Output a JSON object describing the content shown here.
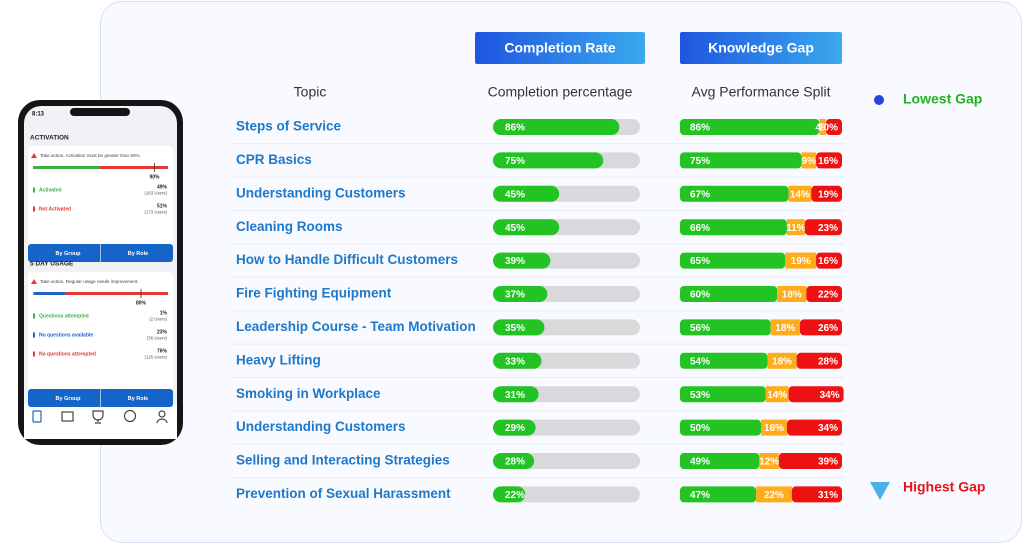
{
  "header": {
    "completion_button": "Completion Rate",
    "gap_button": "Knowledge Gap"
  },
  "table": {
    "columns": [
      "Topic",
      "Completion percentage",
      "Avg Performance Split"
    ],
    "rows": [
      {
        "topic": "Steps of Service",
        "completion": {
          "value": 86,
          "label": "86%"
        },
        "split": [
          {
            "value": 86,
            "label": "86%"
          },
          {
            "value": 4,
            "label": "4%"
          },
          {
            "value": 10,
            "label": "10%"
          }
        ]
      },
      {
        "topic": "CPR Basics",
        "completion": {
          "value": 75,
          "label": "75%"
        },
        "split": [
          {
            "value": 75,
            "label": "75%"
          },
          {
            "value": 9,
            "label": "9%"
          },
          {
            "value": 16,
            "label": "16%"
          }
        ]
      },
      {
        "topic": "Understanding Customers",
        "completion": {
          "value": 45,
          "label": "45%"
        },
        "split": [
          {
            "value": 67,
            "label": "67%"
          },
          {
            "value": 14,
            "label": "14%"
          },
          {
            "value": 19,
            "label": "19%"
          }
        ]
      },
      {
        "topic": "Cleaning Rooms",
        "completion": {
          "value": 45,
          "label": "45%"
        },
        "split": [
          {
            "value": 66,
            "label": "66%"
          },
          {
            "value": 11,
            "label": "11%"
          },
          {
            "value": 23,
            "label": "23%"
          }
        ]
      },
      {
        "topic": "How to Handle Difficult Customers",
        "completion": {
          "value": 39,
          "label": "39%"
        },
        "split": [
          {
            "value": 65,
            "label": "65%"
          },
          {
            "value": 19,
            "label": "19%"
          },
          {
            "value": 16,
            "label": "16%"
          }
        ]
      },
      {
        "topic": "Fire Fighting Equipment",
        "completion": {
          "value": 37,
          "label": "37%"
        },
        "split": [
          {
            "value": 60,
            "label": "60%"
          },
          {
            "value": 18,
            "label": "18%"
          },
          {
            "value": 22,
            "label": "22%"
          }
        ]
      },
      {
        "topic": "Leadership Course - Team Motivation",
        "completion": {
          "value": 35,
          "label": "35%"
        },
        "split": [
          {
            "value": 56,
            "label": "56%"
          },
          {
            "value": 18,
            "label": "18%"
          },
          {
            "value": 26,
            "label": "26%"
          }
        ]
      },
      {
        "topic": "Heavy Lifting",
        "completion": {
          "value": 33,
          "label": "33%"
        },
        "split": [
          {
            "value": 54,
            "label": "54%"
          },
          {
            "value": 18,
            "label": "18%"
          },
          {
            "value": 28,
            "label": "28%"
          }
        ]
      },
      {
        "topic": "Smoking in Workplace",
        "completion": {
          "value": 31,
          "label": "31%"
        },
        "split": [
          {
            "value": 53,
            "label": "53%"
          },
          {
            "value": 14,
            "label": "14%"
          },
          {
            "value": 34,
            "label": "34%"
          }
        ]
      },
      {
        "topic": "Understanding Customers",
        "completion": {
          "value": 29,
          "label": "29%"
        },
        "split": [
          {
            "value": 50,
            "label": "50%"
          },
          {
            "value": 16,
            "label": "16%"
          },
          {
            "value": 34,
            "label": "34%"
          }
        ]
      },
      {
        "topic": "Selling and Interacting Strategies",
        "completion": {
          "value": 28,
          "label": "28%"
        },
        "split": [
          {
            "value": 49,
            "label": "49%"
          },
          {
            "value": 12,
            "label": "12%"
          },
          {
            "value": 39,
            "label": "39%"
          }
        ]
      },
      {
        "topic": "Prevention of Sexual Harassment",
        "completion": {
          "value": 22,
          "label": "22%"
        },
        "split": [
          {
            "value": 47,
            "label": "47%"
          },
          {
            "value": 22,
            "label": "22%"
          },
          {
            "value": 31,
            "label": "31%"
          }
        ]
      }
    ]
  },
  "gap_scale": {
    "top": "Lowest Gap",
    "bottom": "Highest Gap"
  },
  "phone": {
    "time": "8:13",
    "sections": [
      {
        "title": "ACTIVATION",
        "alert": "Take action, Activation must be greater than 90%.",
        "target": {
          "value": 90,
          "label": "90%"
        },
        "items": [
          {
            "name": "Activated",
            "color": "#3cb043",
            "value": {
              "value": 49,
              "label": "49%"
            },
            "users": "(163 Users)"
          },
          {
            "name": "Not Activated",
            "color": "#e53935",
            "value": {
              "value": 51,
              "label": "51%"
            },
            "users": "(173 Users)"
          }
        ],
        "buttons": [
          "By Group",
          "By Role"
        ]
      },
      {
        "title": "5 DAY USAGE",
        "alert": "Take action, Regular usage needs improvement.",
        "target": {
          "value": 80,
          "label": "80%"
        },
        "items": [
          {
            "name": "Questions attempted",
            "color": "#3cb043",
            "value": {
              "value": 1,
              "label": "1%"
            },
            "users": "(2 Users)"
          },
          {
            "name": "No questions available",
            "color": "#1e63c8",
            "value": {
              "value": 23,
              "label": "23%"
            },
            "users": "(36 Users)"
          },
          {
            "name": "No questions attempted",
            "color": "#e53935",
            "value": {
              "value": 76,
              "label": "76%"
            },
            "users": "(125 Users)"
          }
        ],
        "buttons": [
          "By Group",
          "By Role"
        ]
      }
    ]
  }
}
